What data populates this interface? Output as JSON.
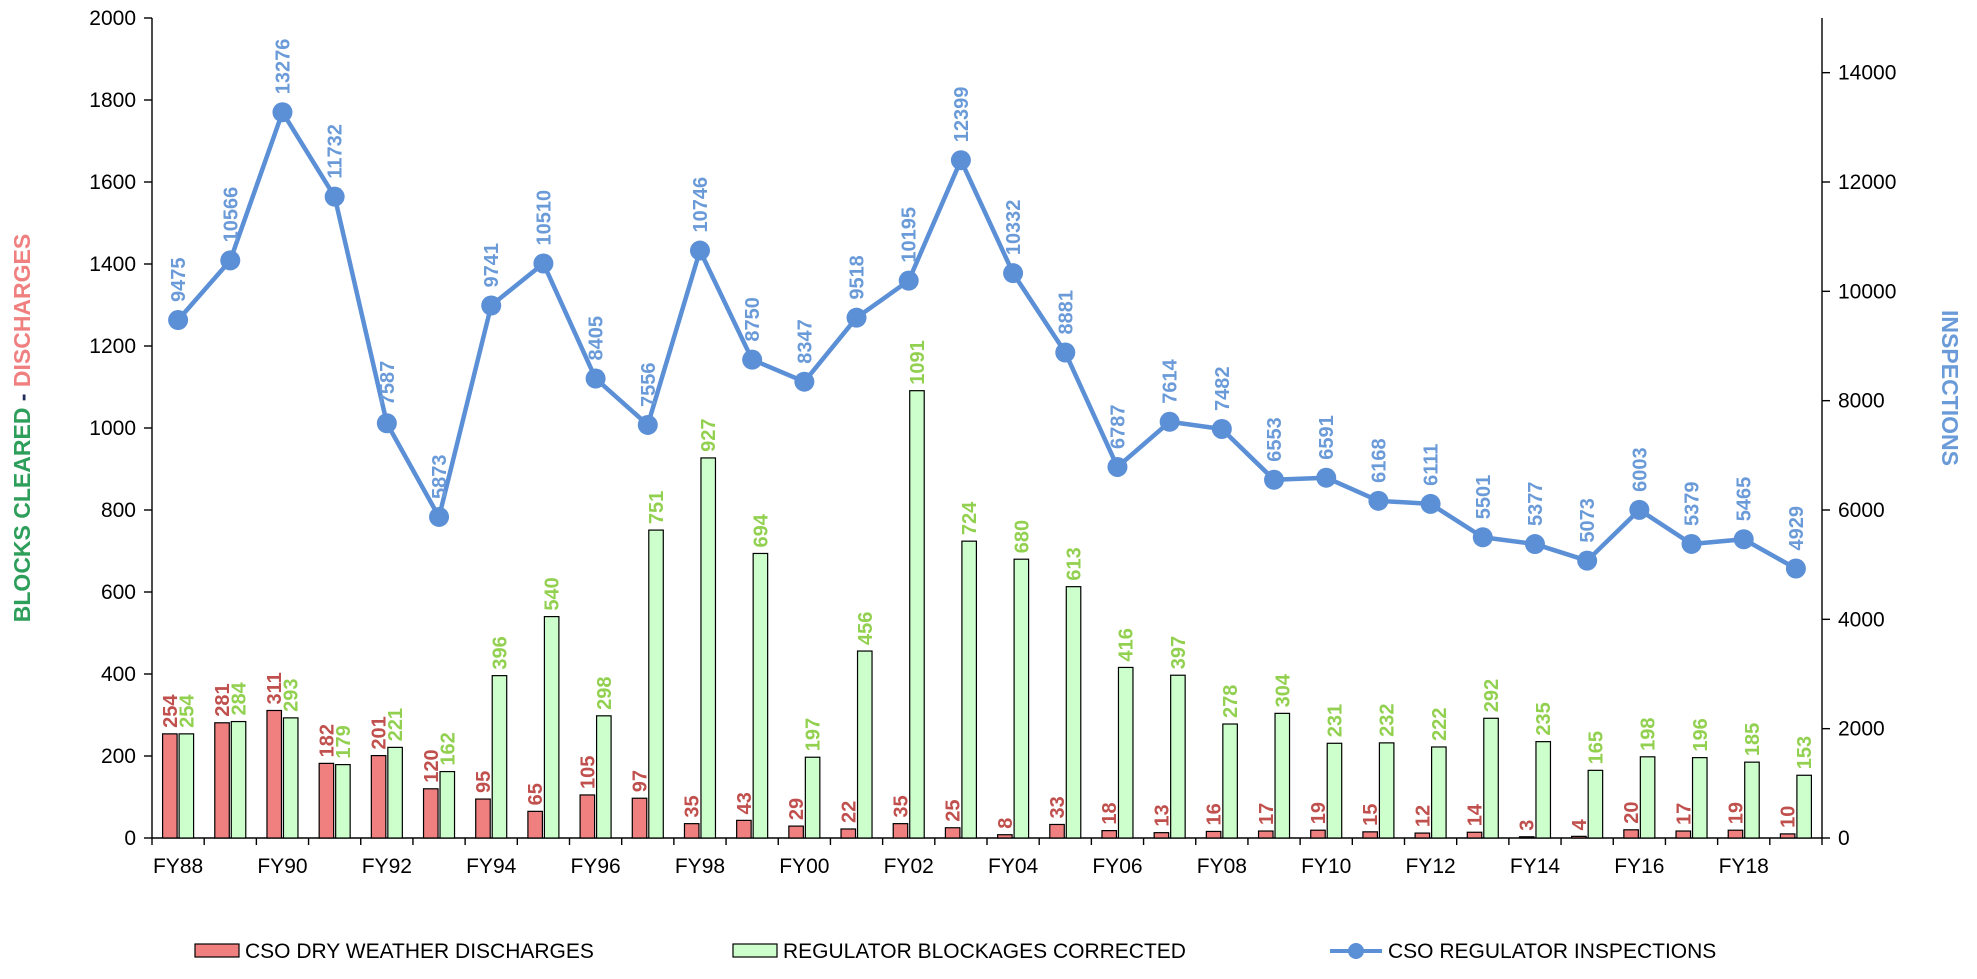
{
  "chart_data": {
    "type": "bar",
    "categories": [
      "FY88",
      "FY89",
      "FY90",
      "FY91",
      "FY92",
      "FY93",
      "FY94",
      "FY95",
      "FY96",
      "FY97",
      "FY98",
      "FY99",
      "FY00",
      "FY01",
      "FY02",
      "FY03",
      "FY04",
      "FY05",
      "FY06",
      "FY07",
      "FY08",
      "FY09",
      "FY10",
      "FY11",
      "FY12",
      "FY13",
      "FY14",
      "FY15",
      "FY16",
      "FY17",
      "FY18",
      "FY19"
    ],
    "x_tick_labels": [
      "FY88",
      "FY90",
      "FY92",
      "FY94",
      "FY96",
      "FY98",
      "FY00",
      "FY02",
      "FY04",
      "FY06",
      "FY08",
      "FY10",
      "FY12",
      "FY14",
      "FY16",
      "FY18"
    ],
    "series": [
      {
        "name": "CSO DRY WEATHER DISCHARGES",
        "type": "bar",
        "axis": "left",
        "color": "#f08080",
        "label_color": "#c0504d",
        "values": [
          254,
          281,
          311,
          182,
          201,
          120,
          95,
          65,
          105,
          97,
          35,
          43,
          29,
          22,
          35,
          25,
          8,
          33,
          18,
          13,
          16,
          17,
          19,
          15,
          12,
          14,
          3,
          4,
          20,
          17,
          19,
          10
        ]
      },
      {
        "name": "REGULATOR BLOCKAGES CORRECTED",
        "type": "bar",
        "axis": "left",
        "color": "#ccffcc",
        "label_color": "#92d050",
        "values": [
          254,
          284,
          293,
          179,
          221,
          162,
          396,
          540,
          298,
          751,
          927,
          694,
          197,
          456,
          1091,
          724,
          680,
          613,
          416,
          397,
          278,
          304,
          231,
          232,
          222,
          292,
          235,
          165,
          198,
          196,
          185,
          153
        ]
      },
      {
        "name": "CSO  REGULATOR INSPECTIONS",
        "type": "line",
        "axis": "right",
        "color": "#5b8fd6",
        "label_color": "#6a9bd8",
        "values": [
          9475,
          10566,
          13276,
          11732,
          7587,
          5873,
          9741,
          10510,
          8405,
          7556,
          10746,
          8750,
          8347,
          9518,
          10195,
          12399,
          10332,
          8881,
          6787,
          7614,
          7482,
          6553,
          6591,
          6168,
          6111,
          5501,
          5377,
          5073,
          6003,
          5379,
          5465,
          4929
        ]
      }
    ],
    "y_left": {
      "min": 0,
      "max": 2000,
      "ticks": [
        0,
        200,
        400,
        600,
        800,
        1000,
        1200,
        1400,
        1600,
        1800,
        2000
      ]
    },
    "y_right": {
      "min": 0,
      "max": 15000,
      "ticks": [
        0,
        2000,
        4000,
        6000,
        8000,
        10000,
        12000,
        14000
      ]
    },
    "ylabel_left_parts": [
      "BLOCKS CLEARED",
      " - ",
      "DISCHARGES"
    ],
    "ylabel_left_colors": [
      "#2e9e5b",
      "#1f2d5a",
      "#f08080"
    ],
    "ylabel_right": "INSPECTIONS",
    "ylabel_right_color": "#6a9bd8",
    "legend_position": "bottom",
    "data_labels": true,
    "grid": false
  }
}
